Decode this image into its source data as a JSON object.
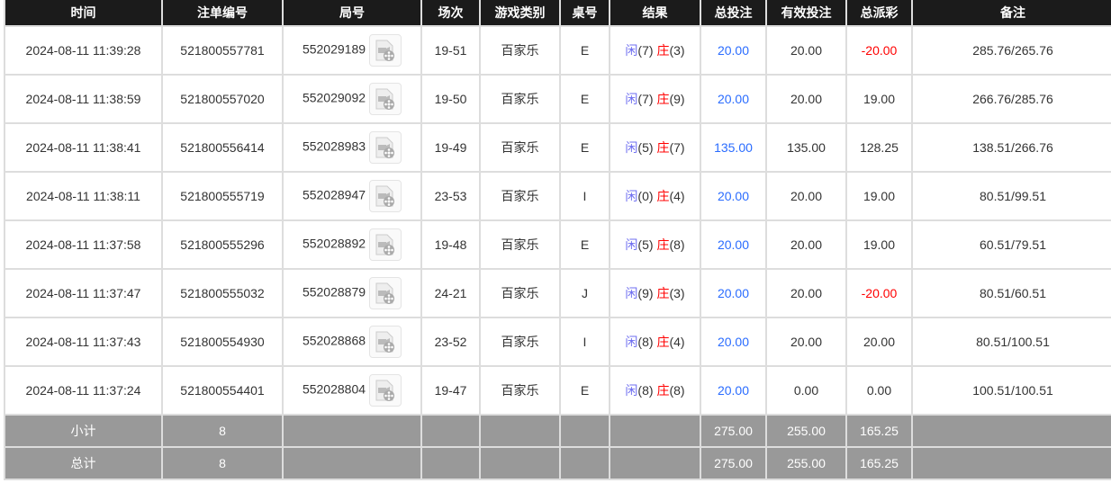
{
  "headers": [
    "时间",
    "注单编号",
    "局号",
    "场次",
    "游戏类别",
    "桌号",
    "结果",
    "总投注",
    "有效投注",
    "总派彩",
    "备注"
  ],
  "rows": [
    {
      "time": "2024-08-11 11:39:28",
      "bet_id": "521800557781",
      "round": "552029189",
      "session": "19-51",
      "game": "百家乐",
      "table": "E",
      "player": "闲",
      "player_score": "(7)",
      "banker": "庄",
      "banker_score": "(3)",
      "total_bet": "20.00",
      "valid_bet": "20.00",
      "payout": "-20.00",
      "payout_negative": true,
      "note": "285.76/265.76"
    },
    {
      "time": "2024-08-11 11:38:59",
      "bet_id": "521800557020",
      "round": "552029092",
      "session": "19-50",
      "game": "百家乐",
      "table": "E",
      "player": "闲",
      "player_score": "(7)",
      "banker": "庄",
      "banker_score": "(9)",
      "total_bet": "20.00",
      "valid_bet": "20.00",
      "payout": "19.00",
      "payout_negative": false,
      "note": "266.76/285.76"
    },
    {
      "time": "2024-08-11 11:38:41",
      "bet_id": "521800556414",
      "round": "552028983",
      "session": "19-49",
      "game": "百家乐",
      "table": "E",
      "player": "闲",
      "player_score": "(5)",
      "banker": "庄",
      "banker_score": "(7)",
      "total_bet": "135.00",
      "valid_bet": "135.00",
      "payout": "128.25",
      "payout_negative": false,
      "note": "138.51/266.76"
    },
    {
      "time": "2024-08-11 11:38:11",
      "bet_id": "521800555719",
      "round": "552028947",
      "session": "23-53",
      "game": "百家乐",
      "table": "I",
      "player": "闲",
      "player_score": "(0)",
      "banker": "庄",
      "banker_score": "(4)",
      "total_bet": "20.00",
      "valid_bet": "20.00",
      "payout": "19.00",
      "payout_negative": false,
      "note": "80.51/99.51"
    },
    {
      "time": "2024-08-11 11:37:58",
      "bet_id": "521800555296",
      "round": "552028892",
      "session": "19-48",
      "game": "百家乐",
      "table": "E",
      "player": "闲",
      "player_score": "(5)",
      "banker": "庄",
      "banker_score": "(8)",
      "total_bet": "20.00",
      "valid_bet": "20.00",
      "payout": "19.00",
      "payout_negative": false,
      "note": "60.51/79.51"
    },
    {
      "time": "2024-08-11 11:37:47",
      "bet_id": "521800555032",
      "round": "552028879",
      "session": "24-21",
      "game": "百家乐",
      "table": "J",
      "player": "闲",
      "player_score": "(9)",
      "banker": "庄",
      "banker_score": "(3)",
      "total_bet": "20.00",
      "valid_bet": "20.00",
      "payout": "-20.00",
      "payout_negative": true,
      "note": "80.51/60.51"
    },
    {
      "time": "2024-08-11 11:37:43",
      "bet_id": "521800554930",
      "round": "552028868",
      "session": "23-52",
      "game": "百家乐",
      "table": "I",
      "player": "闲",
      "player_score": "(8)",
      "banker": "庄",
      "banker_score": "(4)",
      "total_bet": "20.00",
      "valid_bet": "20.00",
      "payout": "20.00",
      "payout_negative": false,
      "note": "80.51/100.51"
    },
    {
      "time": "2024-08-11 11:37:24",
      "bet_id": "521800554401",
      "round": "552028804",
      "session": "19-47",
      "game": "百家乐",
      "table": "E",
      "player": "闲",
      "player_score": "(8)",
      "banker": "庄",
      "banker_score": "(8)",
      "total_bet": "20.00",
      "valid_bet": "0.00",
      "payout": "0.00",
      "payout_negative": false,
      "note": "100.51/100.51"
    }
  ],
  "summary": [
    {
      "label": "小计",
      "count": "8",
      "total_bet": "275.00",
      "valid_bet": "255.00",
      "payout": "165.25"
    },
    {
      "label": "总计",
      "count": "8",
      "total_bet": "275.00",
      "valid_bet": "255.00",
      "payout": "165.25"
    }
  ],
  "colors": {
    "header_bg": "#1b1b1b",
    "summary_bg": "#999999",
    "blue": "#2a6cff",
    "red": "#ff0000"
  },
  "icons": {
    "video": "video-replay-icon"
  }
}
